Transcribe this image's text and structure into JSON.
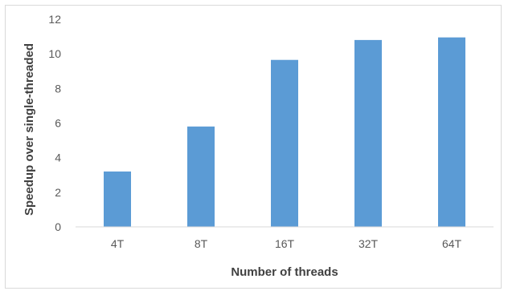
{
  "chart_data": {
    "type": "bar",
    "title": "",
    "xlabel": "Number of threads",
    "ylabel": "Speedup over single-threaded",
    "categories": [
      "4T",
      "8T",
      "16T",
      "32T",
      "64T"
    ],
    "values": [
      3.2,
      5.8,
      9.65,
      10.8,
      10.95
    ],
    "ylim": [
      0,
      12
    ],
    "yticks": [
      0,
      2,
      4,
      6,
      8,
      10,
      12
    ],
    "grid": false,
    "legend": "none",
    "bar_color": "#5b9bd5",
    "axis_color": "#d9d9d9"
  }
}
